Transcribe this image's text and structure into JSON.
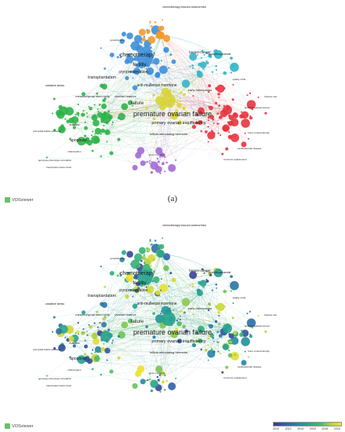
{
  "panel_a": {
    "caption": "(a)",
    "logo_text": "VOSviewer",
    "colors": {
      "red": "#e8343f",
      "green": "#2fb24a",
      "blue": "#3d8fd9",
      "yellow": "#d8d43a",
      "purple": "#a36ad3",
      "orange": "#f39a2e",
      "cyan": "#33b5c6"
    },
    "labels": [
      {
        "text": "premature ovarian failure",
        "cluster": "yellow",
        "size": 9
      },
      {
        "text": "chemotherapy",
        "cluster": "blue",
        "size": 7
      },
      {
        "text": "fertility",
        "cluster": "blue",
        "size": 6
      },
      {
        "text": "cryopreservation",
        "cluster": "blue",
        "size": 5
      },
      {
        "text": "transplantation",
        "cluster": "green",
        "size": 5.5
      },
      {
        "text": "anti-mullerian hormone",
        "cluster": "yellow",
        "size": 5
      },
      {
        "text": "failure",
        "cluster": "red",
        "size": 6
      },
      {
        "text": "primary ovarian insufficiency",
        "cluster": "red",
        "size": 5.5
      },
      {
        "text": "apoptosis",
        "cluster": "green",
        "size": 5
      },
      {
        "text": "follicle-stimulating hormone",
        "cluster": "red",
        "size": 4
      },
      {
        "text": "early menopause",
        "cluster": "red",
        "size": 4
      },
      {
        "text": "breast-cancer",
        "cluster": "blue",
        "size": 4.5
      },
      {
        "text": "follicles",
        "cluster": "green",
        "size": 4
      },
      {
        "text": "mesenchymal stem cells",
        "cluster": "green",
        "size": 4
      },
      {
        "text": "ovarian reserve",
        "cluster": "yellow",
        "size": 4
      },
      {
        "text": "chemotherapy induced amenorrhea",
        "cluster": "orange",
        "size": 3.5
      },
      {
        "text": "cyclophosphamide",
        "cluster": "cyan",
        "size": 3.5
      },
      {
        "text": "quality of life",
        "cluster": "red",
        "size": 3
      },
      {
        "text": "fracture risk",
        "cluster": "red",
        "size": 3
      },
      {
        "text": "bone mineral density",
        "cluster": "red",
        "size": 3
      },
      {
        "text": "cardiovascular disease",
        "cluster": "red",
        "size": 3
      },
      {
        "text": "primordial follicle activation",
        "cluster": "green",
        "size": 3
      },
      {
        "text": "genotype-phenotype correlation",
        "cluster": "purple",
        "size": 3
      },
      {
        "text": "transcription factor foxl2",
        "cluster": "purple",
        "size": 3
      },
      {
        "text": "inflammation",
        "cluster": "green",
        "size": 3
      },
      {
        "text": "gene mutations",
        "cluster": "purple",
        "size": 3
      },
      {
        "text": "postmenopausal women",
        "cluster": "red",
        "size": 3
      },
      {
        "text": "gonadotoxicity",
        "cluster": "blue",
        "size": 3
      },
      {
        "text": "hormone replacement",
        "cluster": "red",
        "size": 3
      },
      {
        "text": "oxidative stress",
        "cluster": "green",
        "size": 3.5
      }
    ]
  },
  "panel_b": {
    "caption": "(b)",
    "logo_text": "VOSviewer",
    "colorbar": {
      "ticks": [
        "2010",
        "2012",
        "2014",
        "2016",
        "2018",
        "2020"
      ],
      "stops": [
        "#3b3b8f",
        "#2d6aa8",
        "#1f9a9a",
        "#3cb96b",
        "#b3d13c",
        "#f0e228"
      ]
    }
  }
}
